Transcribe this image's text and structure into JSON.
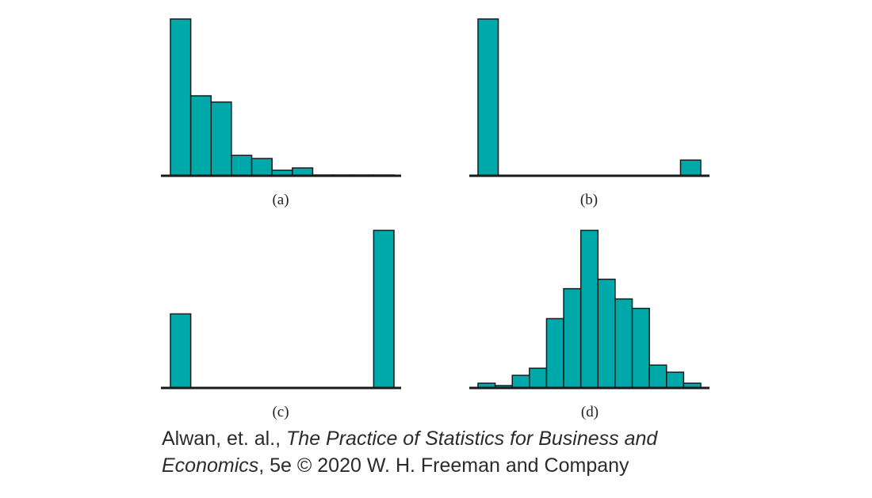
{
  "chart_data": [
    {
      "type": "bar",
      "panel_label": "(a)",
      "title": "",
      "xlabel": "",
      "ylabel": "",
      "values": [
        100,
        51,
        47,
        13,
        11,
        3.5,
        5,
        0.5,
        0.5,
        0.5,
        0.5
      ],
      "ylim": [
        0,
        100
      ],
      "axes": "baseline only",
      "grid": false,
      "legend": "none"
    },
    {
      "type": "bar",
      "panel_label": "(b)",
      "title": "",
      "xlabel": "",
      "ylabel": "",
      "values": [
        100,
        0,
        0,
        0,
        0,
        0,
        0,
        0,
        0,
        0,
        10
      ],
      "ylim": [
        0,
        100
      ],
      "axes": "baseline only",
      "grid": false,
      "legend": "none"
    },
    {
      "type": "bar",
      "panel_label": "(c)",
      "title": "",
      "xlabel": "",
      "ylabel": "",
      "values": [
        47,
        0,
        0,
        0,
        0,
        0,
        0,
        0,
        0,
        0,
        100
      ],
      "ylim": [
        0,
        100
      ],
      "axes": "baseline only",
      "grid": false,
      "legend": "none"
    },
    {
      "type": "bar",
      "panel_label": "(d)",
      "title": "",
      "xlabel": "",
      "ylabel": "",
      "values": [
        3,
        1.5,
        8,
        12.5,
        44,
        63,
        100,
        69,
        56.5,
        50.5,
        14.5,
        10,
        3
      ],
      "ylim": [
        0,
        100
      ],
      "axes": "baseline only",
      "grid": false,
      "legend": "none"
    }
  ],
  "colors": {
    "bar_fill": "#00A9A9",
    "bar_stroke": "#1a1a1a",
    "axis": "#1a1a1a",
    "text": "#222222"
  },
  "caption": {
    "line1_authors": "Alwan, et. al., ",
    "line1_book_title": "The Practice of Statistics for Business and",
    "line2_book_title": "Economics",
    "line2_rest": ", 5e © 2020 W. H. Freeman and Company"
  }
}
